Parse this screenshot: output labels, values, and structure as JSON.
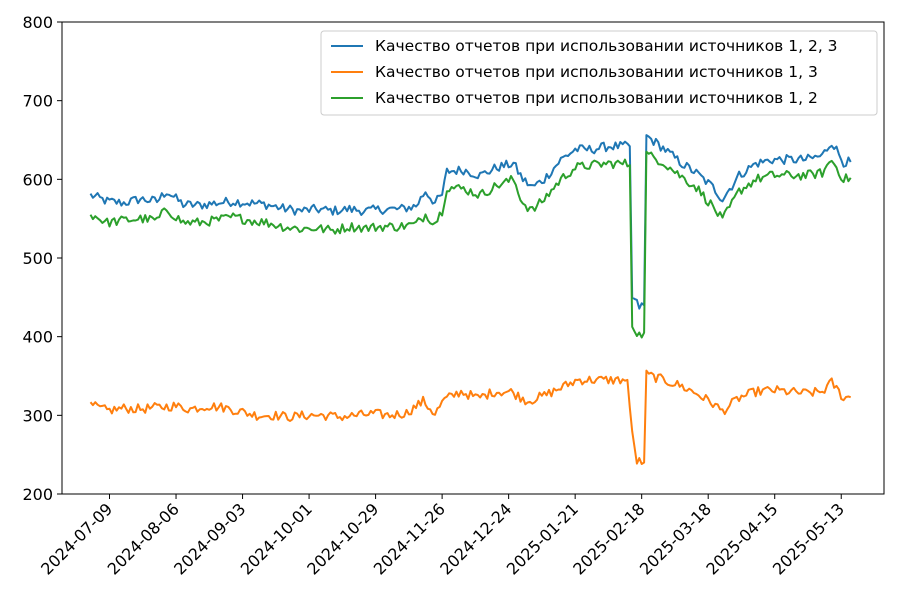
{
  "chart_data": {
    "type": "line",
    "title": "",
    "xlabel": "",
    "ylabel": "",
    "ylim": [
      200,
      800
    ],
    "xlim": [
      "2024-06-19",
      "2025-05-31"
    ],
    "yticks": [
      200,
      300,
      400,
      500,
      600,
      700,
      800
    ],
    "xticks": [
      "2024-07-09",
      "2024-08-06",
      "2024-09-03",
      "2024-10-01",
      "2024-10-29",
      "2024-11-26",
      "2024-12-24",
      "2025-01-21",
      "2025-02-18",
      "2025-03-18",
      "2025-04-15",
      "2025-05-13"
    ],
    "grid": false,
    "legend_position": "upper-right",
    "series": [
      {
        "name": "Качество отчетов при использовании источников 1, 2, 3",
        "color": "#1f77b4",
        "points": [
          [
            "2024-07-01",
            580
          ],
          [
            "2024-07-08",
            572
          ],
          [
            "2024-07-15",
            570
          ],
          [
            "2024-07-22",
            575
          ],
          [
            "2024-07-29",
            572
          ],
          [
            "2024-08-02",
            585
          ],
          [
            "2024-08-09",
            568
          ],
          [
            "2024-08-16",
            567
          ],
          [
            "2024-08-23",
            570
          ],
          [
            "2024-08-30",
            572
          ],
          [
            "2024-09-06",
            570
          ],
          [
            "2024-09-13",
            568
          ],
          [
            "2024-09-20",
            563
          ],
          [
            "2024-09-27",
            560
          ],
          [
            "2024-10-04",
            562
          ],
          [
            "2024-10-11",
            560
          ],
          [
            "2024-10-18",
            562
          ],
          [
            "2024-10-25",
            560
          ],
          [
            "2024-11-01",
            562
          ],
          [
            "2024-11-08",
            562
          ],
          [
            "2024-11-15",
            566
          ],
          [
            "2024-11-19",
            585
          ],
          [
            "2024-11-23",
            570
          ],
          [
            "2024-11-26",
            580
          ],
          [
            "2024-11-28",
            610
          ],
          [
            "2024-12-05",
            612
          ],
          [
            "2024-12-12",
            605
          ],
          [
            "2024-12-19",
            615
          ],
          [
            "2024-12-26",
            620
          ],
          [
            "2024-12-30",
            600
          ],
          [
            "2025-01-03",
            590
          ],
          [
            "2025-01-08",
            600
          ],
          [
            "2025-01-15",
            625
          ],
          [
            "2025-01-21",
            638
          ],
          [
            "2025-01-28",
            638
          ],
          [
            "2025-02-04",
            642
          ],
          [
            "2025-02-11",
            642
          ],
          [
            "2025-02-13",
            642
          ],
          [
            "2025-02-14",
            450
          ],
          [
            "2025-02-17",
            438
          ],
          [
            "2025-02-19",
            440
          ],
          [
            "2025-02-20",
            655
          ],
          [
            "2025-02-27",
            640
          ],
          [
            "2025-03-06",
            622
          ],
          [
            "2025-03-13",
            608
          ],
          [
            "2025-03-20",
            590
          ],
          [
            "2025-03-24",
            575
          ],
          [
            "2025-03-31",
            605
          ],
          [
            "2025-04-07",
            620
          ],
          [
            "2025-04-14",
            625
          ],
          [
            "2025-04-21",
            625
          ],
          [
            "2025-04-28",
            625
          ],
          [
            "2025-05-05",
            630
          ],
          [
            "2025-05-09",
            648
          ],
          [
            "2025-05-12",
            632
          ],
          [
            "2025-05-14",
            622
          ],
          [
            "2025-05-17",
            622
          ]
        ]
      },
      {
        "name": "Качество отчетов при использовании источников 1, 3",
        "color": "#ff7f0e",
        "points": [
          [
            "2024-07-01",
            313
          ],
          [
            "2024-07-08",
            306
          ],
          [
            "2024-07-15",
            309
          ],
          [
            "2024-07-22",
            308
          ],
          [
            "2024-07-29",
            310
          ],
          [
            "2024-08-05",
            312
          ],
          [
            "2024-08-12",
            308
          ],
          [
            "2024-08-19",
            312
          ],
          [
            "2024-08-26",
            310
          ],
          [
            "2024-09-02",
            305
          ],
          [
            "2024-09-09",
            300
          ],
          [
            "2024-09-16",
            300
          ],
          [
            "2024-09-23",
            298
          ],
          [
            "2024-09-30",
            300
          ],
          [
            "2024-10-07",
            300
          ],
          [
            "2024-10-14",
            298
          ],
          [
            "2024-10-21",
            300
          ],
          [
            "2024-10-28",
            302
          ],
          [
            "2024-11-04",
            300
          ],
          [
            "2024-11-11",
            303
          ],
          [
            "2024-11-18",
            318
          ],
          [
            "2024-11-23",
            302
          ],
          [
            "2024-11-27",
            320
          ],
          [
            "2024-12-04",
            330
          ],
          [
            "2024-12-11",
            322
          ],
          [
            "2024-12-18",
            330
          ],
          [
            "2024-12-25",
            330
          ],
          [
            "2025-01-01",
            318
          ],
          [
            "2025-01-08",
            325
          ],
          [
            "2025-01-15",
            335
          ],
          [
            "2025-01-22",
            345
          ],
          [
            "2025-01-29",
            345
          ],
          [
            "2025-02-05",
            345
          ],
          [
            "2025-02-12",
            345
          ],
          [
            "2025-02-14",
            275
          ],
          [
            "2025-02-16",
            242
          ],
          [
            "2025-02-19",
            240
          ],
          [
            "2025-02-20",
            352
          ],
          [
            "2025-02-27",
            345
          ],
          [
            "2025-03-06",
            338
          ],
          [
            "2025-03-13",
            328
          ],
          [
            "2025-03-20",
            315
          ],
          [
            "2025-03-24",
            305
          ],
          [
            "2025-03-31",
            322
          ],
          [
            "2025-04-07",
            330
          ],
          [
            "2025-04-14",
            332
          ],
          [
            "2025-04-21",
            330
          ],
          [
            "2025-04-28",
            328
          ],
          [
            "2025-05-05",
            330
          ],
          [
            "2025-05-09",
            342
          ],
          [
            "2025-05-12",
            330
          ],
          [
            "2025-05-14",
            322
          ],
          [
            "2025-05-17",
            323
          ]
        ]
      },
      {
        "name": "Качество отчетов при использовании источников 1, 2",
        "color": "#2ca02c",
        "points": [
          [
            "2024-07-01",
            556
          ],
          [
            "2024-07-08",
            545
          ],
          [
            "2024-07-15",
            548
          ],
          [
            "2024-07-22",
            550
          ],
          [
            "2024-07-29",
            548
          ],
          [
            "2024-08-02",
            562
          ],
          [
            "2024-08-09",
            545
          ],
          [
            "2024-08-16",
            545
          ],
          [
            "2024-08-23",
            548
          ],
          [
            "2024-08-30",
            552
          ],
          [
            "2024-09-06",
            548
          ],
          [
            "2024-09-13",
            545
          ],
          [
            "2024-09-20",
            540
          ],
          [
            "2024-09-27",
            537
          ],
          [
            "2024-10-04",
            538
          ],
          [
            "2024-10-11",
            535
          ],
          [
            "2024-10-18",
            540
          ],
          [
            "2024-10-25",
            538
          ],
          [
            "2024-11-01",
            540
          ],
          [
            "2024-11-08",
            540
          ],
          [
            "2024-11-15",
            543
          ],
          [
            "2024-11-19",
            555
          ],
          [
            "2024-11-23",
            545
          ],
          [
            "2024-11-26",
            560
          ],
          [
            "2024-11-28",
            590
          ],
          [
            "2024-12-05",
            588
          ],
          [
            "2024-12-12",
            580
          ],
          [
            "2024-12-19",
            592
          ],
          [
            "2024-12-26",
            600
          ],
          [
            "2024-12-30",
            570
          ],
          [
            "2025-01-03",
            560
          ],
          [
            "2025-01-08",
            575
          ],
          [
            "2025-01-15",
            600
          ],
          [
            "2025-01-21",
            615
          ],
          [
            "2025-01-28",
            618
          ],
          [
            "2025-02-04",
            620
          ],
          [
            "2025-02-11",
            620
          ],
          [
            "2025-02-13",
            618
          ],
          [
            "2025-02-14",
            415
          ],
          [
            "2025-02-17",
            402
          ],
          [
            "2025-02-19",
            405
          ],
          [
            "2025-02-20",
            632
          ],
          [
            "2025-02-27",
            622
          ],
          [
            "2025-03-06",
            605
          ],
          [
            "2025-03-13",
            590
          ],
          [
            "2025-03-20",
            565
          ],
          [
            "2025-03-24",
            548
          ],
          [
            "2025-03-31",
            585
          ],
          [
            "2025-04-07",
            600
          ],
          [
            "2025-04-14",
            605
          ],
          [
            "2025-04-21",
            605
          ],
          [
            "2025-04-28",
            605
          ],
          [
            "2025-05-05",
            608
          ],
          [
            "2025-05-09",
            625
          ],
          [
            "2025-05-12",
            610
          ],
          [
            "2025-05-14",
            600
          ],
          [
            "2025-05-17",
            602
          ]
        ]
      }
    ]
  }
}
